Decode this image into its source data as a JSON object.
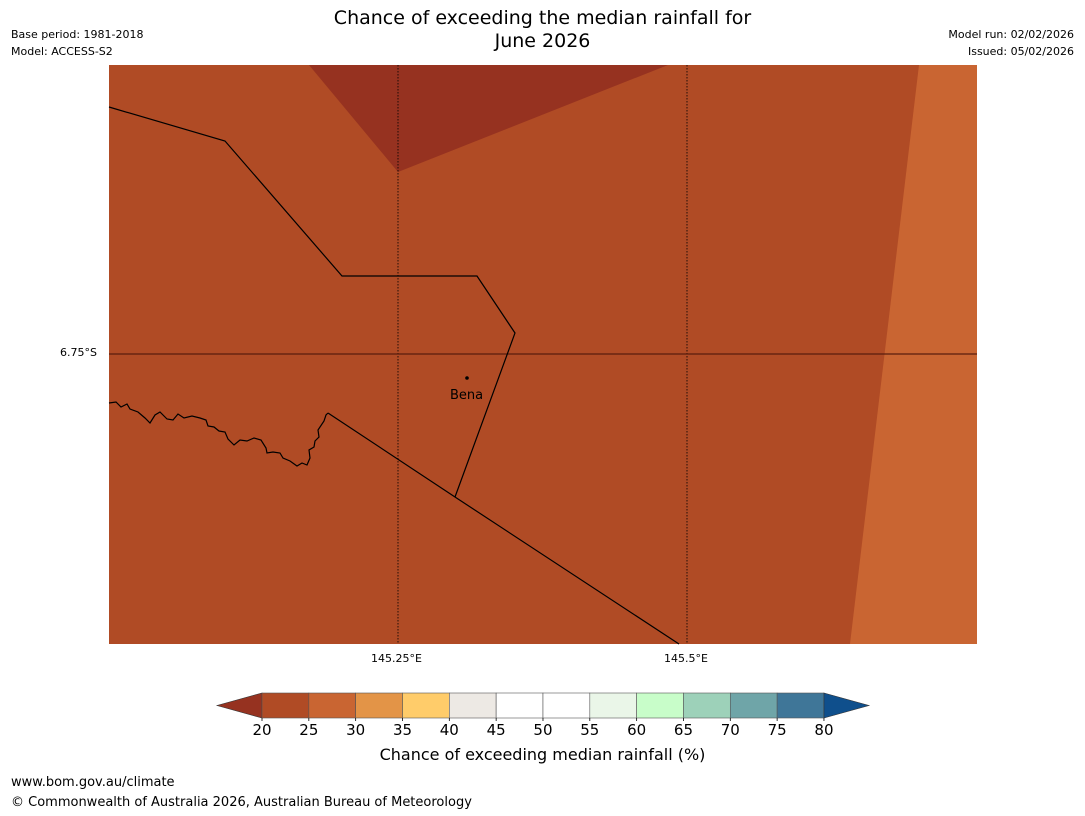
{
  "title": {
    "line1": "Chance of exceeding the median rainfall for",
    "line2": "June 2026"
  },
  "meta_left": {
    "base_period": "Base period: 1981-2018",
    "model": "Model: ACCESS-S2"
  },
  "meta_right": {
    "model_run": "Model run: 02/02/2026",
    "issued": "Issued: 05/02/2026"
  },
  "map": {
    "latitude_label": "6.75°S",
    "longitude_labels": [
      "145.25°E",
      "145.5°E"
    ],
    "place": "Bena",
    "region_colors": {
      "dark": "#963220",
      "main": "#b04b25",
      "light": "#c96532"
    }
  },
  "colorbar": {
    "label": "Chance of exceeding median rainfall (%)",
    "ticks": [
      "20",
      "25",
      "30",
      "35",
      "40",
      "45",
      "50",
      "55",
      "60",
      "65",
      "70",
      "75",
      "80"
    ],
    "under_color": "#963220",
    "over_color": "#0f4f8c",
    "bins": [
      {
        "range": "20-25",
        "color": "#b04b25"
      },
      {
        "range": "25-30",
        "color": "#c96532"
      },
      {
        "range": "30-35",
        "color": "#e39447"
      },
      {
        "range": "35-40",
        "color": "#ffcc6a"
      },
      {
        "range": "40-45",
        "color": "#ede9e4"
      },
      {
        "range": "45-50",
        "color": "#ffffff"
      },
      {
        "range": "50-55",
        "color": "#ffffff"
      },
      {
        "range": "55-60",
        "color": "#eaf6e8"
      },
      {
        "range": "60-65",
        "color": "#c8fdc9"
      },
      {
        "range": "65-70",
        "color": "#9dd1b9"
      },
      {
        "range": "70-75",
        "color": "#6fa5a8"
      },
      {
        "range": "75-80",
        "color": "#3f7698"
      }
    ]
  },
  "footer": {
    "url": "www.bom.gov.au/climate",
    "copyright": "© Commonwealth of Australia 2026, Australian Bureau of Meteorology"
  }
}
